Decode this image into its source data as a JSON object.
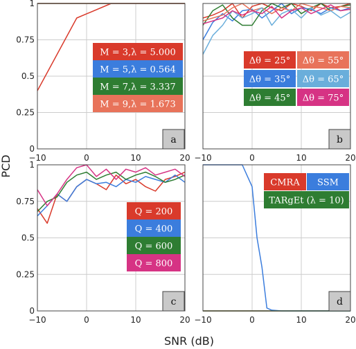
{
  "chart_data": [
    {
      "type": "line",
      "panel_tag": "a",
      "xlim": [
        -10,
        20
      ],
      "ylim": [
        0,
        1
      ],
      "x_ticks": [
        "−10",
        "0",
        "10",
        "20"
      ],
      "y_ticks": [
        "0",
        "0.25",
        "0.5",
        "0.75",
        "1"
      ],
      "grid": true,
      "legend_placement": "right",
      "legend": [
        {
          "label": "M = 3,λ = 5.000",
          "color": "#d93a2b"
        },
        {
          "label": "M = 5,λ = 0.564",
          "color": "#3b7ddd"
        },
        {
          "label": "M = 7,λ = 3.337",
          "color": "#2e7d32"
        },
        {
          "label": "M = 9,λ = 1.673",
          "color": "#e8735a"
        }
      ],
      "series": [
        {
          "name": "M = 3,λ = 5.000",
          "color": "#d93a2b",
          "x": [
            -10,
            -2,
            5,
            10,
            15,
            20
          ],
          "y": [
            0.4,
            0.9,
            1.0,
            1.0,
            1.0,
            1.0
          ]
        },
        {
          "name": "M = 5,λ = 0.564",
          "color": "#3b7ddd",
          "x": [
            -10,
            0,
            10,
            20
          ],
          "y": [
            1.0,
            1.0,
            1.0,
            1.0
          ]
        },
        {
          "name": "M = 7,λ = 3.337",
          "color": "#2e7d32",
          "x": [
            -10,
            0,
            10,
            20
          ],
          "y": [
            1.0,
            1.0,
            1.0,
            1.0
          ]
        },
        {
          "name": "M = 9,λ = 1.673",
          "color": "#e8735a",
          "x": [
            -10,
            0,
            10,
            20
          ],
          "y": [
            1.0,
            1.0,
            1.0,
            1.0
          ]
        }
      ]
    },
    {
      "type": "line",
      "panel_tag": "b",
      "xlim": [
        -10,
        20
      ],
      "ylim": [
        0,
        1
      ],
      "x_ticks": [
        "−10",
        "0",
        "10",
        "20"
      ],
      "y_ticks": [],
      "grid": true,
      "legend_placement": "right",
      "legend": [
        {
          "label": "Δθ = 25°",
          "color": "#d93a2b"
        },
        {
          "label": "Δθ = 55°",
          "color": "#e8735a"
        },
        {
          "label": "Δθ = 35°",
          "color": "#3b7ddd"
        },
        {
          "label": "Δθ = 65°",
          "color": "#6aaedb"
        },
        {
          "label": "Δθ = 45°",
          "color": "#2e7d32"
        },
        {
          "label": "Δθ = 75°",
          "color": "#d63384"
        }
      ],
      "series": [
        {
          "name": "Δθ = 25°",
          "color": "#d93a2b",
          "x": [
            -10,
            -8,
            -6,
            -4,
            -2,
            0,
            2,
            4,
            6,
            8,
            10,
            12,
            14,
            16,
            18,
            20
          ],
          "y": [
            0.9,
            0.92,
            0.95,
            1.0,
            0.9,
            0.98,
            1.0,
            0.97,
            0.95,
            1.0,
            0.98,
            0.95,
            1.0,
            0.97,
            0.98,
            1.0
          ]
        },
        {
          "name": "Δθ = 35°",
          "color": "#3b7ddd",
          "x": [
            -10,
            -8,
            -6,
            -4,
            -2,
            0,
            2,
            4,
            6,
            8,
            10,
            12,
            14,
            16,
            18,
            20
          ],
          "y": [
            0.75,
            0.87,
            0.93,
            0.88,
            0.95,
            0.96,
            0.9,
            0.95,
            1.0,
            0.93,
            0.97,
            0.96,
            0.93,
            0.97,
            0.95,
            0.97
          ]
        },
        {
          "name": "Δθ = 45°",
          "color": "#2e7d32",
          "x": [
            -10,
            -8,
            -6,
            -4,
            -2,
            0,
            2,
            4,
            6,
            8,
            10,
            12,
            14,
            16,
            18,
            20
          ],
          "y": [
            0.85,
            0.95,
            0.99,
            0.9,
            0.85,
            0.85,
            0.95,
            1.0,
            0.97,
            1.0,
            0.93,
            0.97,
            1.0,
            0.95,
            0.98,
            0.99
          ]
        },
        {
          "name": "Δθ = 55°",
          "color": "#e8735a",
          "x": [
            -10,
            -8,
            -6,
            -4,
            -2,
            0,
            2,
            4,
            6,
            8,
            10,
            12,
            14,
            16,
            18,
            20
          ],
          "y": [
            0.88,
            0.9,
            0.92,
            0.97,
            1.0,
            0.95,
            0.97,
            0.93,
            0.97,
            0.95,
            1.0,
            0.98,
            0.97,
            0.95,
            0.98,
            0.97
          ]
        },
        {
          "name": "Δθ = 65°",
          "color": "#6aaedb",
          "x": [
            -10,
            -8,
            -6,
            -4,
            -2,
            0,
            2,
            4,
            6,
            8,
            10,
            12,
            14,
            16,
            18,
            20
          ],
          "y": [
            0.65,
            0.78,
            0.85,
            0.95,
            0.9,
            0.93,
            0.97,
            0.85,
            0.93,
            0.96,
            0.9,
            0.97,
            0.92,
            0.95,
            0.9,
            0.94
          ]
        },
        {
          "name": "Δθ = 75°",
          "color": "#d63384",
          "x": [
            -10,
            -8,
            -6,
            -4,
            -2,
            0,
            2,
            4,
            6,
            8,
            10,
            12,
            14,
            16,
            18,
            20
          ],
          "y": [
            0.86,
            0.88,
            0.9,
            0.95,
            0.92,
            0.95,
            0.93,
            0.98,
            0.9,
            0.95,
            0.97,
            0.93,
            0.96,
            0.99,
            0.95,
            0.96
          ]
        }
      ]
    },
    {
      "type": "line",
      "panel_tag": "c",
      "xlim": [
        -10,
        20
      ],
      "ylim": [
        0,
        1
      ],
      "x_ticks": [
        "−10",
        "0",
        "10",
        "20"
      ],
      "y_ticks": [
        "0",
        "0.25",
        "0.5",
        "0.75",
        "1"
      ],
      "grid": true,
      "legend_placement": "right",
      "legend": [
        {
          "label": "Q = 200",
          "color": "#d93a2b"
        },
        {
          "label": "Q = 400",
          "color": "#3b7ddd"
        },
        {
          "label": "Q = 600",
          "color": "#2e7d32"
        },
        {
          "label": "Q = 800",
          "color": "#d63384"
        }
      ],
      "series": [
        {
          "name": "Q = 200",
          "color": "#d93a2b",
          "x": [
            -10,
            -8,
            -6,
            -4,
            -2,
            0,
            2,
            4,
            6,
            8,
            10,
            12,
            14,
            16,
            18,
            20
          ],
          "y": [
            0.7,
            0.6,
            0.8,
            0.75,
            0.85,
            0.9,
            0.87,
            0.83,
            0.93,
            0.87,
            0.9,
            0.85,
            0.82,
            0.9,
            0.92,
            0.95
          ]
        },
        {
          "name": "Q = 400",
          "color": "#3b7ddd",
          "x": [
            -10,
            -8,
            -6,
            -4,
            -2,
            0,
            2,
            4,
            6,
            8,
            10,
            12,
            14,
            16,
            18,
            20
          ],
          "y": [
            0.65,
            0.72,
            0.8,
            0.75,
            0.85,
            0.9,
            0.87,
            0.88,
            0.85,
            0.9,
            0.88,
            0.92,
            0.9,
            0.88,
            0.93,
            0.88
          ]
        },
        {
          "name": "Q = 600",
          "color": "#2e7d32",
          "x": [
            -10,
            -8,
            -6,
            -4,
            -2,
            0,
            2,
            4,
            6,
            8,
            10,
            12,
            14,
            16,
            18,
            20
          ],
          "y": [
            0.68,
            0.75,
            0.78,
            0.88,
            0.93,
            0.95,
            0.9,
            0.93,
            0.95,
            0.9,
            0.93,
            0.95,
            0.92,
            0.88,
            0.9,
            0.93
          ]
        },
        {
          "name": "Q = 800",
          "color": "#d63384",
          "x": [
            -10,
            -8,
            -6,
            -4,
            -2,
            0,
            2,
            4,
            6,
            8,
            10,
            12,
            14,
            16,
            18,
            20
          ],
          "y": [
            0.83,
            0.72,
            0.8,
            0.9,
            0.98,
            1.0,
            0.92,
            0.97,
            0.9,
            0.97,
            0.95,
            0.98,
            0.93,
            0.95,
            0.97,
            0.92
          ]
        }
      ]
    },
    {
      "type": "line",
      "panel_tag": "d",
      "xlim": [
        -10,
        20
      ],
      "ylim": [
        0,
        1
      ],
      "x_ticks": [
        "−10",
        "0",
        "10",
        "20"
      ],
      "y_ticks": [],
      "grid": true,
      "legend_placement": "top-right",
      "legend": [
        {
          "label": "CMRA",
          "color": "#d93a2b"
        },
        {
          "label": "SSM",
          "color": "#3b7ddd"
        },
        {
          "label": "TARgEt (λ = 10)",
          "color": "#2e7d32"
        }
      ],
      "series": [
        {
          "name": "CMRA",
          "color": "#d93a2b",
          "x": [
            -10,
            0,
            10,
            20
          ],
          "y": [
            0.0,
            0.0,
            0.0,
            0.0
          ]
        },
        {
          "name": "SSM",
          "color": "#3b7ddd",
          "x": [
            -10,
            -8,
            -6,
            -4,
            -2,
            0,
            1,
            2,
            3,
            4,
            6,
            8,
            10,
            12,
            14,
            16,
            18,
            20
          ],
          "y": [
            1.0,
            1.0,
            1.0,
            1.0,
            1.0,
            0.85,
            0.5,
            0.3,
            0.02,
            0.005,
            0.0,
            0.0,
            0.0,
            0.0,
            0.0,
            0.0,
            0.0,
            0.0
          ]
        },
        {
          "name": "TARgEt (λ = 10)",
          "color": "#2e7d32",
          "x": [
            -10,
            0,
            10,
            20
          ],
          "y": [
            0.0,
            0.0,
            0.0,
            0.0
          ]
        }
      ]
    }
  ],
  "ylabel": "PCD",
  "xlabel": "SNR (dB)"
}
